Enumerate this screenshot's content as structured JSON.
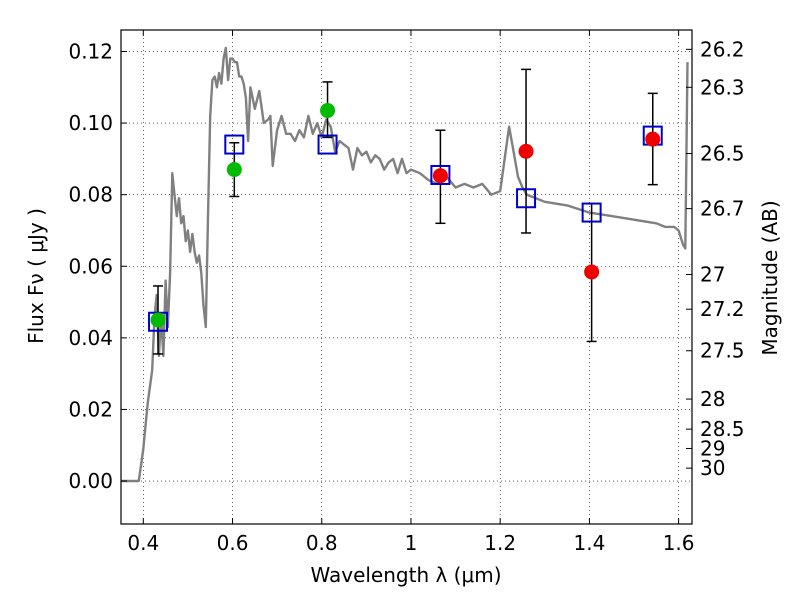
{
  "chart_data": {
    "type": "scatter",
    "xlabel": "Wavelength  λ (μm)",
    "ylabel": "Flux  Fν  ( μJy )",
    "ylabel_right": "Magnitude (AB)",
    "xlim": [
      0.35,
      1.63
    ],
    "ylim": [
      -0.012,
      0.126
    ],
    "grid": true,
    "x_ticks": [
      0.4,
      0.6,
      0.8,
      1.0,
      1.2,
      1.4,
      1.6
    ],
    "x_tick_labels": [
      "0.4",
      "0.6",
      "0.8",
      "1",
      "1.2",
      "1.4",
      "1.6"
    ],
    "y_ticks": [
      0.0,
      0.02,
      0.04,
      0.06,
      0.08,
      0.1,
      0.12
    ],
    "y_tick_labels": [
      "0.00",
      "0.02",
      "0.04",
      "0.06",
      "0.08",
      "0.10",
      "0.12"
    ],
    "right_ticks": [
      {
        "label": "26.2",
        "flux": 0.1206
      },
      {
        "label": "26.3",
        "flux": 0.11
      },
      {
        "label": "26.5",
        "flux": 0.0915
      },
      {
        "label": "26.7",
        "flux": 0.0761
      },
      {
        "label": "27",
        "flux": 0.0577
      },
      {
        "label": "27.2",
        "flux": 0.048
      },
      {
        "label": "27.5",
        "flux": 0.0364
      },
      {
        "label": "28",
        "flux": 0.0229
      },
      {
        "label": "28.5",
        "flux": 0.0145
      },
      {
        "label": "29",
        "flux": 0.0091
      },
      {
        "label": "30",
        "flux": 0.0036
      }
    ],
    "colors": {
      "model": "#808080",
      "template_box": "#0000cc",
      "green_points": "#00bb00",
      "red_points": "#ee0000",
      "error_bars": "#000000"
    },
    "model_spectrum": {
      "x": [
        0.35,
        0.39,
        0.4,
        0.41,
        0.42,
        0.425,
        0.43,
        0.435,
        0.44,
        0.445,
        0.45,
        0.455,
        0.46,
        0.465,
        0.47,
        0.475,
        0.48,
        0.485,
        0.49,
        0.495,
        0.5,
        0.505,
        0.51,
        0.515,
        0.52,
        0.525,
        0.53,
        0.535,
        0.54,
        0.545,
        0.55,
        0.555,
        0.56,
        0.565,
        0.57,
        0.575,
        0.58,
        0.585,
        0.59,
        0.595,
        0.6,
        0.605,
        0.61,
        0.615,
        0.62,
        0.625,
        0.63,
        0.635,
        0.64,
        0.645,
        0.65,
        0.66,
        0.67,
        0.68,
        0.685,
        0.69,
        0.7,
        0.71,
        0.72,
        0.73,
        0.74,
        0.75,
        0.76,
        0.77,
        0.78,
        0.79,
        0.8,
        0.81,
        0.82,
        0.83,
        0.84,
        0.85,
        0.86,
        0.87,
        0.88,
        0.89,
        0.9,
        0.91,
        0.92,
        0.93,
        0.94,
        0.95,
        0.96,
        0.97,
        0.98,
        0.99,
        1.0,
        1.02,
        1.04,
        1.06,
        1.08,
        1.1,
        1.12,
        1.14,
        1.16,
        1.18,
        1.2,
        1.22,
        1.23,
        1.24,
        1.25,
        1.26,
        1.28,
        1.3,
        1.35,
        1.4,
        1.45,
        1.5,
        1.55,
        1.57,
        1.59,
        1.6,
        1.61,
        1.615,
        1.62
      ],
      "y": [
        0.0,
        0.0,
        0.009,
        0.022,
        0.031,
        0.046,
        0.052,
        0.035,
        0.046,
        0.035,
        0.056,
        0.043,
        0.058,
        0.086,
        0.08,
        0.074,
        0.079,
        0.072,
        0.074,
        0.067,
        0.07,
        0.064,
        0.069,
        0.064,
        0.061,
        0.063,
        0.058,
        0.049,
        0.043,
        0.074,
        0.102,
        0.112,
        0.113,
        0.11,
        0.114,
        0.111,
        0.118,
        0.121,
        0.112,
        0.118,
        0.118,
        0.117,
        0.117,
        0.113,
        0.113,
        0.111,
        0.107,
        0.095,
        0.11,
        0.107,
        0.104,
        0.109,
        0.1,
        0.101,
        0.102,
        0.088,
        0.098,
        0.102,
        0.097,
        0.097,
        0.095,
        0.098,
        0.096,
        0.102,
        0.097,
        0.1,
        0.096,
        0.101,
        0.099,
        0.092,
        0.095,
        0.094,
        0.093,
        0.087,
        0.093,
        0.091,
        0.092,
        0.089,
        0.091,
        0.09,
        0.087,
        0.089,
        0.09,
        0.086,
        0.09,
        0.086,
        0.087,
        0.086,
        0.084,
        0.083,
        0.085,
        0.082,
        0.083,
        0.082,
        0.083,
        0.08,
        0.081,
        0.099,
        0.092,
        0.085,
        0.082,
        0.08,
        0.079,
        0.078,
        0.077,
        0.075,
        0.074,
        0.073,
        0.072,
        0.071,
        0.071,
        0.07,
        0.066,
        0.065,
        0.117
      ]
    },
    "template_boxes": {
      "x": [
        0.433,
        0.604,
        0.813,
        1.066,
        1.258,
        1.405,
        1.542
      ],
      "y": [
        0.0445,
        0.094,
        0.094,
        0.0855,
        0.079,
        0.075,
        0.0965
      ]
    },
    "green_points": {
      "x": [
        0.433,
        0.604,
        0.813
      ],
      "y": [
        0.045,
        0.087,
        0.1035
      ],
      "yerr_low": [
        0.0355,
        0.0795,
        0.096
      ],
      "yerr_high": [
        0.0545,
        0.0945,
        0.1115
      ]
    },
    "red_points": {
      "x": [
        1.066,
        1.258,
        1.405,
        1.542
      ],
      "y": [
        0.0853,
        0.0921,
        0.0584,
        0.0955
      ],
      "yerr_low": [
        0.072,
        0.0693,
        0.039,
        0.0828
      ],
      "yerr_high": [
        0.098,
        0.115,
        0.0775,
        0.1083
      ]
    }
  }
}
